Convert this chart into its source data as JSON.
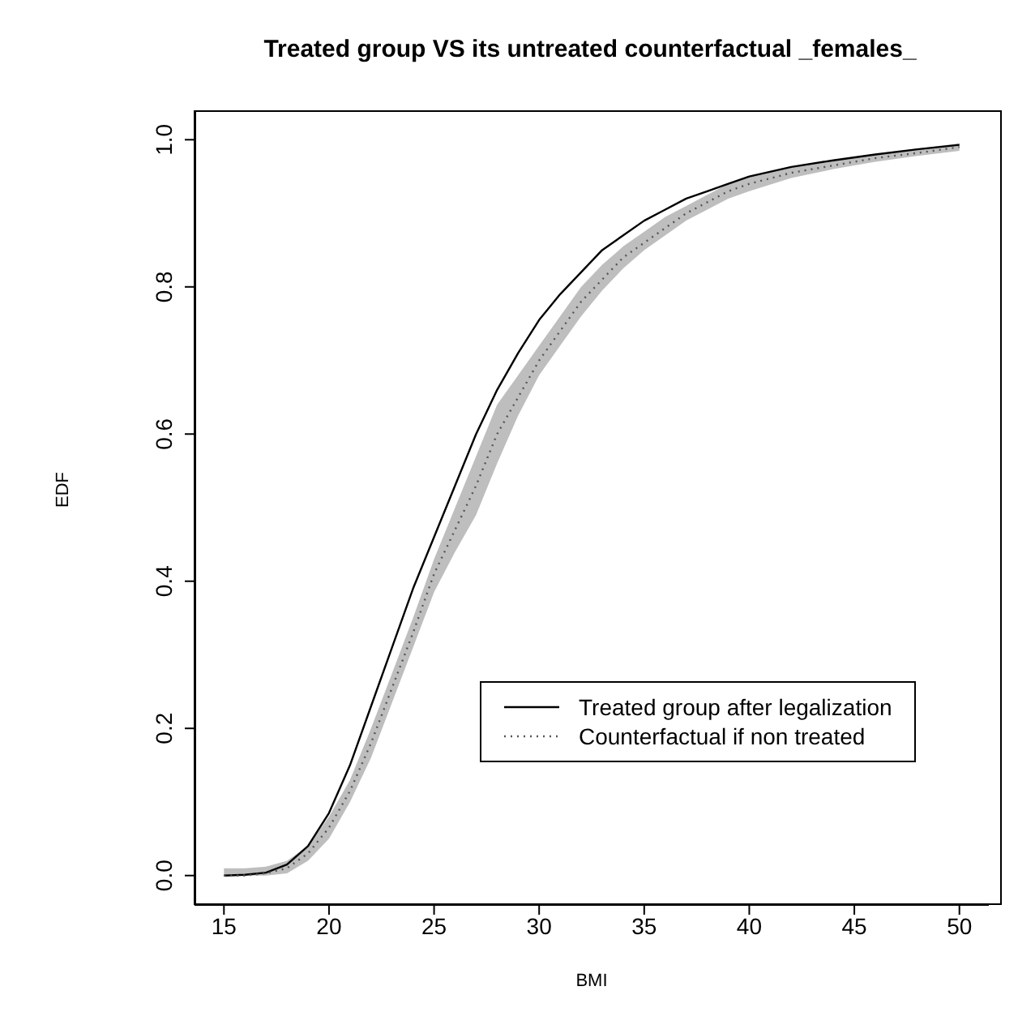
{
  "chart_data": {
    "type": "line",
    "title": "Treated group VS its untreated counterfactual _females_",
    "xlabel": "BMI",
    "ylabel": "EDF",
    "x": [
      15,
      16,
      17,
      18,
      19,
      20,
      21,
      22,
      23,
      24,
      25,
      26,
      27,
      28,
      29,
      30,
      31,
      32,
      33,
      34,
      35,
      36,
      37,
      38,
      39,
      40,
      42,
      44,
      46,
      48,
      50
    ],
    "series": [
      {
        "name": "Treated group after legalization",
        "color": "#000000",
        "line_style": "solid",
        "values": [
          0.0,
          0.001,
          0.004,
          0.015,
          0.04,
          0.085,
          0.15,
          0.23,
          0.31,
          0.39,
          0.46,
          0.53,
          0.6,
          0.66,
          0.71,
          0.755,
          0.79,
          0.82,
          0.85,
          0.87,
          0.89,
          0.905,
          0.92,
          0.93,
          0.94,
          0.95,
          0.963,
          0.972,
          0.98,
          0.987,
          0.993
        ]
      },
      {
        "name": "Counterfactual if non treated",
        "color": "#555555",
        "line_style": "dotted",
        "values": [
          0.0,
          0.0,
          0.003,
          0.01,
          0.03,
          0.065,
          0.115,
          0.18,
          0.255,
          0.33,
          0.41,
          0.47,
          0.53,
          0.6,
          0.65,
          0.7,
          0.74,
          0.78,
          0.81,
          0.84,
          0.86,
          0.88,
          0.9,
          0.915,
          0.93,
          0.94,
          0.955,
          0.965,
          0.975,
          0.982,
          0.99
        ],
        "lower": [
          0.0,
          0.0,
          0.0,
          0.003,
          0.02,
          0.05,
          0.1,
          0.16,
          0.235,
          0.31,
          0.385,
          0.44,
          0.49,
          0.56,
          0.625,
          0.68,
          0.72,
          0.76,
          0.795,
          0.825,
          0.85,
          0.87,
          0.89,
          0.905,
          0.92,
          0.93,
          0.948,
          0.96,
          0.97,
          0.978,
          0.985
        ],
        "upper": [
          0.01,
          0.01,
          0.012,
          0.02,
          0.04,
          0.08,
          0.13,
          0.2,
          0.275,
          0.35,
          0.43,
          0.5,
          0.57,
          0.64,
          0.68,
          0.72,
          0.76,
          0.8,
          0.83,
          0.855,
          0.875,
          0.895,
          0.91,
          0.925,
          0.94,
          0.95,
          0.962,
          0.972,
          0.98,
          0.988,
          0.995
        ]
      }
    ],
    "xlim": [
      13.6,
      51.4
    ],
    "xticks": [
      15,
      20,
      25,
      30,
      35,
      40,
      45,
      50
    ],
    "ylim": [
      -0.04,
      1.04
    ],
    "yticks": [
      {
        "value": 0,
        "label": "0.0"
      },
      {
        "value": 0.2,
        "label": "0.2"
      },
      {
        "value": 0.4,
        "label": "0.4"
      },
      {
        "value": 0.6,
        "label": "0.6"
      },
      {
        "value": 0.8,
        "label": "0.8"
      },
      {
        "value": 1,
        "label": "1.0"
      }
    ],
    "grid": false,
    "legend": "right",
    "marker": "none"
  }
}
